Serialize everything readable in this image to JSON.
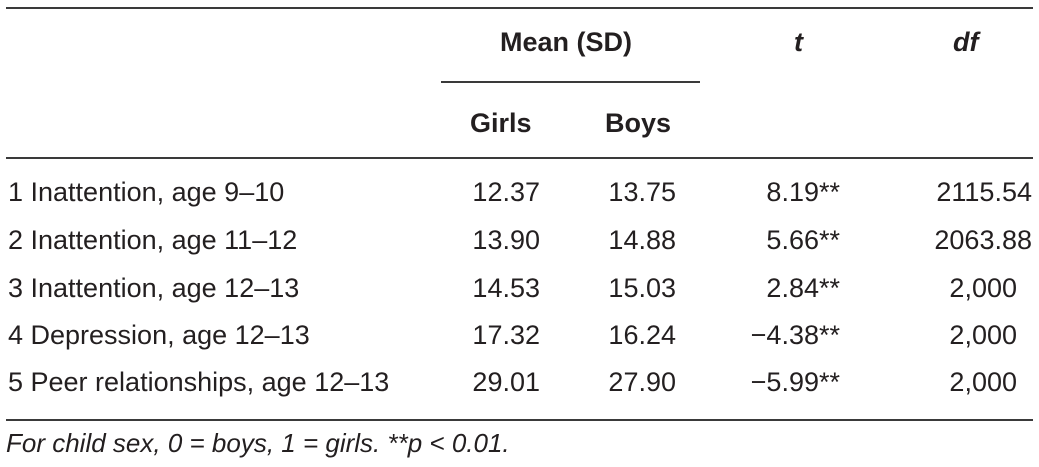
{
  "table": {
    "header": {
      "group_label": "Mean (SD)",
      "t_label": "t",
      "df_label": "df",
      "girls_label": "Girls",
      "boys_label": "Boys"
    },
    "rows": [
      {
        "label": "1 Inattention, age 9–10",
        "girls": "12.37",
        "boys": "13.75",
        "t": "8.19**",
        "df": "2115.54"
      },
      {
        "label": "2 Inattention, age 11–12",
        "girls": "13.90",
        "boys": "14.88",
        "t": "5.66**",
        "df": "2063.88"
      },
      {
        "label": "3 Inattention, age 12–13",
        "girls": "14.53",
        "boys": "15.03",
        "t": "2.84**",
        "df": "2,000"
      },
      {
        "label": "4 Depression, age 12–13",
        "girls": "17.32",
        "boys": "16.24",
        "t": "−4.38**",
        "df": "2,000"
      },
      {
        "label": "5 Peer relationships, age 12–13",
        "girls": "29.01",
        "boys": "27.90",
        "t": "−5.99**",
        "df": "2,000"
      }
    ],
    "footnote": "For child sex, 0 = boys, 1 = girls. **p < 0.01."
  }
}
